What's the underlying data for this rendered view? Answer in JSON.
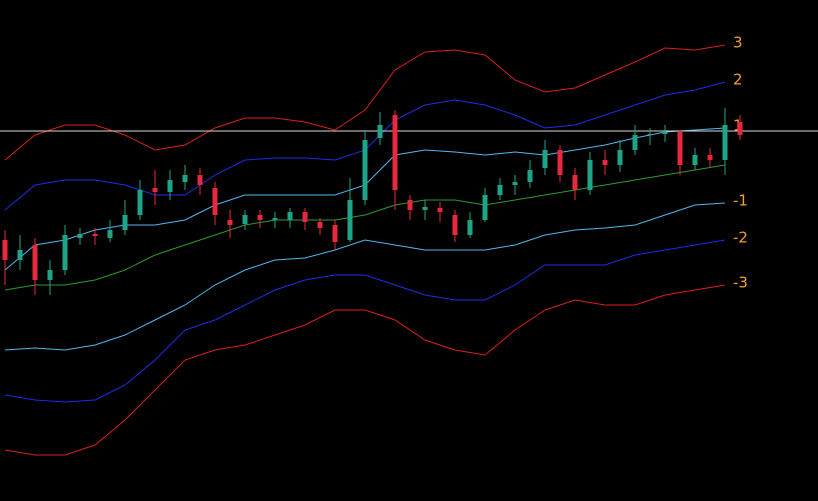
{
  "chart_data": {
    "type": "candlestick",
    "background": "#000000",
    "xlim": [
      0,
      49
    ],
    "ylim": [
      0,
      500
    ],
    "up_color": "#1fa487",
    "down_color": "#e8283c",
    "candles": {
      "open": [
        260,
        240,
        255,
        220,
        230,
        262,
        266,
        262,
        270,
        285,
        312,
        308,
        318,
        325,
        312,
        280,
        276,
        285,
        280,
        280,
        288,
        278,
        275,
        260,
        300,
        362,
        385,
        300,
        290,
        292,
        285,
        265,
        280,
        305,
        315,
        318,
        332,
        350,
        325,
        310,
        340,
        335,
        350,
        365,
        366,
        368,
        335,
        345,
        340,
        378
      ],
      "high": [
        270,
        265,
        262,
        240,
        275,
        272,
        272,
        280,
        300,
        320,
        330,
        330,
        335,
        332,
        318,
        290,
        290,
        290,
        288,
        292,
        292,
        282,
        280,
        322,
        370,
        388,
        390,
        305,
        300,
        298,
        290,
        288,
        312,
        322,
        325,
        340,
        360,
        355,
        332,
        348,
        350,
        360,
        375,
        372,
        375,
        370,
        352,
        352,
        392,
        385
      ],
      "low": [
        215,
        230,
        205,
        205,
        225,
        255,
        255,
        258,
        265,
        280,
        295,
        300,
        310,
        305,
        275,
        262,
        270,
        272,
        272,
        272,
        270,
        265,
        250,
        258,
        295,
        355,
        290,
        280,
        280,
        278,
        258,
        262,
        278,
        300,
        305,
        312,
        325,
        318,
        300,
        305,
        325,
        328,
        345,
        355,
        358,
        325,
        330,
        332,
        325,
        360
      ],
      "close": [
        240,
        250,
        220,
        230,
        265,
        266,
        264,
        270,
        285,
        310,
        308,
        320,
        325,
        315,
        285,
        275,
        285,
        280,
        282,
        288,
        278,
        272,
        258,
        300,
        360,
        375,
        310,
        290,
        293,
        288,
        265,
        280,
        305,
        315,
        318,
        330,
        350,
        325,
        310,
        340,
        335,
        350,
        365,
        366,
        368,
        335,
        345,
        340,
        375,
        365
      ]
    },
    "series": [
      {
        "name": "3",
        "color": "#d8201c",
        "x": [
          0,
          2,
          4,
          6,
          8,
          10,
          12,
          14,
          16,
          18,
          20,
          22,
          24,
          26,
          28,
          30,
          32,
          34,
          36,
          38,
          40,
          42,
          44,
          46,
          48
        ],
        "values": [
          340,
          365,
          375,
          375,
          365,
          350,
          355,
          372,
          382,
          382,
          378,
          370,
          390,
          430,
          448,
          450,
          445,
          420,
          408,
          412,
          425,
          438,
          452,
          450,
          455
        ]
      },
      {
        "name": "2",
        "color": "#1a2ee8",
        "x": [
          0,
          2,
          4,
          6,
          8,
          10,
          12,
          14,
          16,
          18,
          20,
          22,
          24,
          26,
          28,
          30,
          32,
          34,
          36,
          38,
          40,
          42,
          44,
          46,
          48
        ],
        "values": [
          290,
          315,
          320,
          320,
          315,
          305,
          305,
          325,
          340,
          342,
          342,
          340,
          350,
          380,
          395,
          400,
          395,
          385,
          372,
          375,
          385,
          395,
          405,
          410,
          418
        ]
      },
      {
        "name": "1",
        "color": "#4fb8f0",
        "x": [
          0,
          2,
          4,
          6,
          8,
          10,
          12,
          14,
          16,
          18,
          20,
          22,
          24,
          26,
          28,
          30,
          32,
          34,
          36,
          38,
          40,
          42,
          44,
          46,
          48
        ],
        "values": [
          230,
          255,
          260,
          270,
          275,
          275,
          280,
          295,
          305,
          305,
          305,
          305,
          315,
          345,
          350,
          348,
          345,
          348,
          345,
          350,
          355,
          362,
          368,
          370,
          372
        ]
      },
      {
        "name": null,
        "color": "#2e9a2e",
        "x": [
          0,
          2,
          4,
          6,
          8,
          10,
          12,
          14,
          16,
          18,
          20,
          22,
          24,
          26,
          28,
          30,
          32,
          34,
          36,
          38,
          40,
          42,
          44,
          46,
          48
        ],
        "values": [
          210,
          215,
          215,
          220,
          230,
          245,
          255,
          265,
          275,
          280,
          280,
          280,
          285,
          295,
          300,
          300,
          295,
          300,
          305,
          310,
          315,
          320,
          325,
          330,
          335
        ]
      },
      {
        "name": "-1",
        "color": "#4fb8f0",
        "x": [
          0,
          2,
          4,
          6,
          8,
          10,
          12,
          14,
          16,
          18,
          20,
          22,
          24,
          26,
          28,
          30,
          32,
          34,
          36,
          38,
          40,
          42,
          44,
          46,
          48
        ],
        "values": [
          150,
          152,
          150,
          155,
          165,
          180,
          195,
          215,
          230,
          240,
          242,
          250,
          260,
          255,
          250,
          250,
          250,
          255,
          265,
          270,
          272,
          275,
          285,
          295,
          297
        ]
      },
      {
        "name": "-2",
        "color": "#1a2ee8",
        "x": [
          0,
          2,
          4,
          6,
          8,
          10,
          12,
          14,
          16,
          18,
          20,
          22,
          24,
          26,
          28,
          30,
          32,
          34,
          36,
          38,
          40,
          42,
          44,
          46,
          48
        ],
        "values": [
          105,
          100,
          98,
          100,
          115,
          140,
          170,
          180,
          195,
          210,
          220,
          225,
          225,
          215,
          205,
          200,
          200,
          215,
          235,
          235,
          235,
          245,
          250,
          255,
          260
        ]
      },
      {
        "name": "-3",
        "color": "#d8201c",
        "x": [
          0,
          2,
          4,
          6,
          8,
          10,
          12,
          14,
          16,
          18,
          20,
          22,
          24,
          26,
          28,
          30,
          32,
          34,
          36,
          38,
          40,
          42,
          44,
          46,
          48
        ],
        "values": [
          50,
          45,
          45,
          55,
          80,
          110,
          140,
          150,
          155,
          165,
          175,
          190,
          190,
          180,
          160,
          150,
          145,
          170,
          190,
          200,
          195,
          195,
          205,
          210,
          215
        ]
      }
    ],
    "label_color": "#f0a030",
    "price_line": {
      "value": 369,
      "color": "#d8d8d8"
    }
  }
}
